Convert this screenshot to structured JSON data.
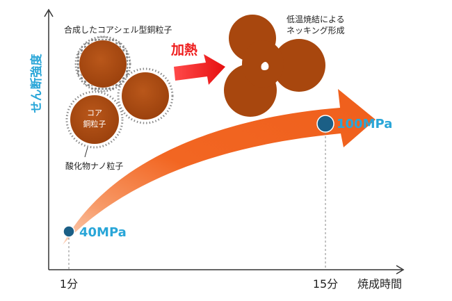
{
  "axes": {
    "y_label": "せん断強度",
    "x_label": "焼成時間"
  },
  "points": [
    {
      "time_label": "1分",
      "strength_label": "40MPa"
    },
    {
      "time_label": "15分",
      "strength_label": "100MPa"
    }
  ],
  "particle": {
    "caption": "合成したコアシェル型銅粒子",
    "core_line1": "コア",
    "core_line2": "銅粒子",
    "shell_caption": "酸化物ナノ粒子"
  },
  "process": {
    "heating_label": "加熱",
    "result_line1": "低温焼結による",
    "result_line2": "ネッキング形成"
  },
  "colors": {
    "axis_label": "#29a6d8",
    "copper": "#a8470e",
    "copper_dark": "#6e2e08",
    "shell_dot": "#8a8a8a",
    "arrow": "#f26622",
    "heat_arrow": "#ee1c1c",
    "point": "#1b5f86",
    "axis": "#333333"
  }
}
